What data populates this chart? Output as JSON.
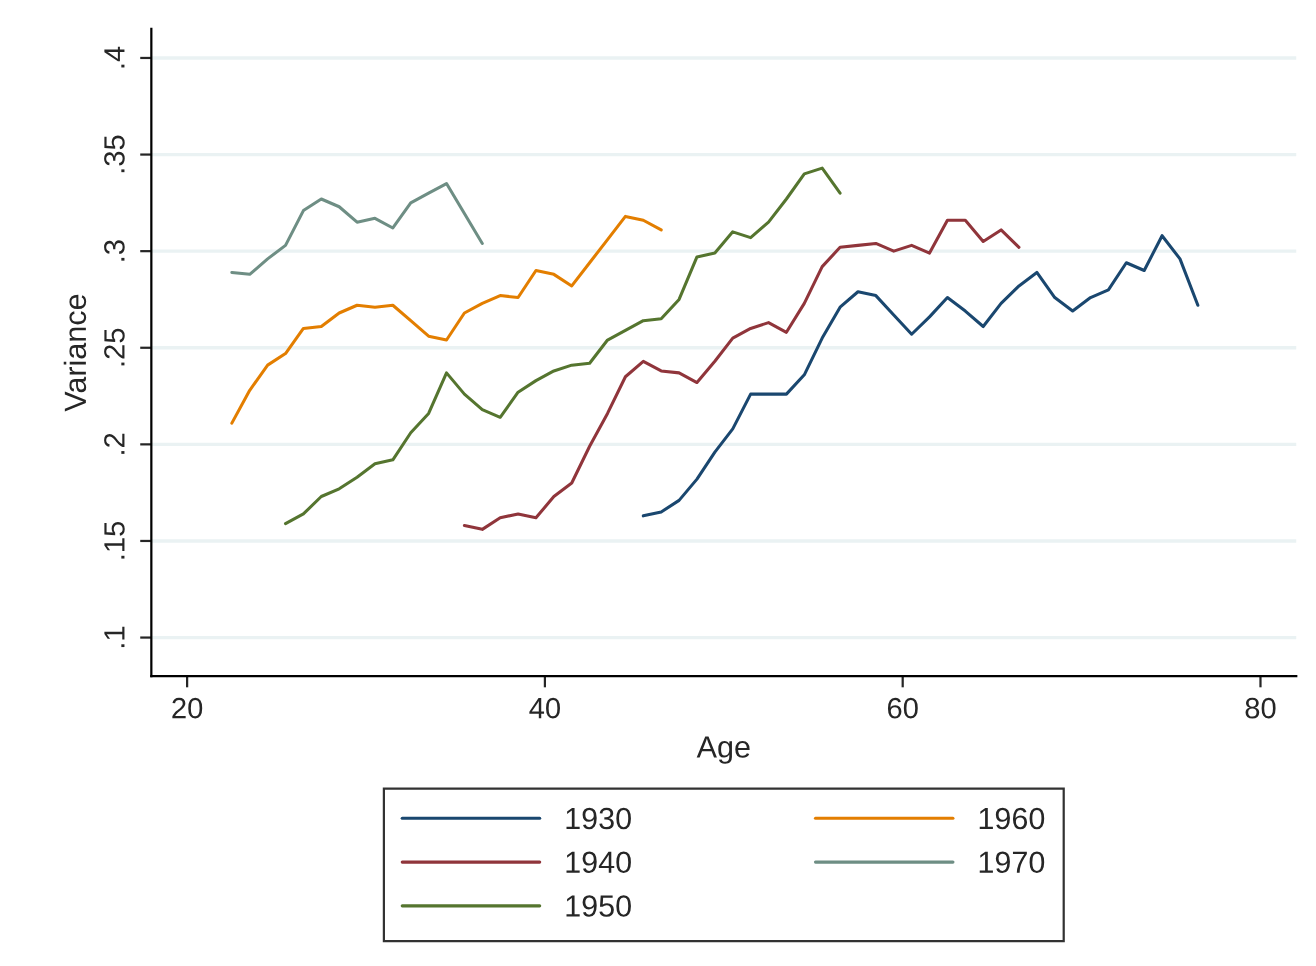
{
  "chart_data": {
    "type": "line",
    "xlabel": "Age",
    "ylabel": "Variance",
    "xlim": [
      18,
      82
    ],
    "xticks": [
      20,
      40,
      60,
      80
    ],
    "ylim": [
      0.08,
      0.415
    ],
    "yticks": [
      {
        "value": 0.1,
        "label": ".1"
      },
      {
        "value": 0.15,
        "label": ".15"
      },
      {
        "value": 0.2,
        "label": ".2"
      },
      {
        "value": 0.25,
        "label": ".25"
      },
      {
        "value": 0.3,
        "label": ".3"
      },
      {
        "value": 0.35,
        "label": ".35"
      },
      {
        "value": 0.4,
        "label": ".4"
      }
    ],
    "grid": "y",
    "legend": "bottom",
    "marker": "none",
    "line_style": "solid",
    "series": [
      {
        "name": "1930",
        "color": "#1a476f",
        "x": [
          45.5,
          46.5,
          47.5,
          48.5,
          49.5,
          50.5,
          51.5,
          52.5,
          53.5,
          54.5,
          55.5,
          56.5,
          57.5,
          58.5,
          59.5,
          60.5,
          61.5,
          62.5,
          63.5,
          64.5,
          65.5,
          66.5,
          67.5,
          68.5,
          69.5,
          70.5,
          71.5,
          72.5,
          73.5,
          74.5,
          75.5,
          76.5
        ],
        "values": [
          0.163,
          0.165,
          0.171,
          0.182,
          0.196,
          0.208,
          0.226,
          0.226,
          0.226,
          0.236,
          0.255,
          0.271,
          0.279,
          0.277,
          0.267,
          0.257,
          0.266,
          0.276,
          0.269,
          0.261,
          0.273,
          0.282,
          0.289,
          0.276,
          0.269,
          0.276,
          0.28,
          0.294,
          0.29,
          0.308,
          0.296,
          0.272
        ]
      },
      {
        "name": "1940",
        "color": "#90353b",
        "x": [
          35.5,
          36.5,
          37.5,
          38.5,
          39.5,
          40.5,
          41.5,
          42.5,
          43.5,
          44.5,
          45.5,
          46.5,
          47.5,
          48.5,
          49.5,
          50.5,
          51.5,
          52.5,
          53.5,
          54.5,
          55.5,
          56.5,
          57.5,
          58.5,
          59.5,
          60.5,
          61.5,
          62.5,
          63.5,
          64.5,
          65.5,
          66.5
        ],
        "values": [
          0.158,
          0.156,
          0.162,
          0.164,
          0.162,
          0.173,
          0.18,
          0.199,
          0.216,
          0.235,
          0.243,
          0.238,
          0.237,
          0.232,
          0.243,
          0.255,
          0.26,
          0.263,
          0.258,
          0.273,
          0.292,
          0.302,
          0.303,
          0.304,
          0.3,
          0.303,
          0.299,
          0.316,
          0.316,
          0.305,
          0.311,
          0.302
        ]
      },
      {
        "name": "1950",
        "color": "#55752f",
        "x": [
          25.5,
          26.5,
          27.5,
          28.5,
          29.5,
          30.5,
          31.5,
          32.5,
          33.5,
          34.5,
          35.5,
          36.5,
          37.5,
          38.5,
          39.5,
          40.5,
          41.5,
          42.5,
          43.5,
          44.5,
          45.5,
          46.5,
          47.5,
          48.5,
          49.5,
          50.5,
          51.5,
          52.5,
          53.5,
          54.5,
          55.5,
          56.5
        ],
        "values": [
          0.159,
          0.164,
          0.173,
          0.177,
          0.183,
          0.19,
          0.192,
          0.206,
          0.216,
          0.237,
          0.226,
          0.218,
          0.214,
          0.227,
          0.233,
          0.238,
          0.241,
          0.242,
          0.254,
          0.259,
          0.264,
          0.265,
          0.275,
          0.297,
          0.299,
          0.31,
          0.307,
          0.315,
          0.327,
          0.34,
          0.343,
          0.33
        ]
      },
      {
        "name": "1960",
        "color": "#e37e00",
        "x": [
          22.5,
          23.5,
          24.5,
          25.5,
          26.5,
          27.5,
          28.5,
          29.5,
          30.5,
          31.5,
          32.5,
          33.5,
          34.5,
          35.5,
          36.5,
          37.5,
          38.5,
          39.5,
          40.5,
          41.5,
          42.5,
          43.5,
          44.5,
          45.5,
          46.5
        ],
        "values": [
          0.211,
          0.228,
          0.241,
          0.247,
          0.26,
          0.261,
          0.268,
          0.272,
          0.271,
          0.272,
          0.264,
          0.256,
          0.254,
          0.268,
          0.273,
          0.277,
          0.276,
          0.29,
          0.288,
          0.282,
          0.294,
          0.306,
          0.318,
          0.316,
          0.311
        ]
      },
      {
        "name": "1970",
        "color": "#6e8e84",
        "x": [
          22.5,
          23.5,
          24.5,
          25.5,
          26.5,
          27.5,
          28.5,
          29.5,
          30.5,
          31.5,
          32.5,
          33.5,
          34.5,
          36.5
        ],
        "values": [
          0.289,
          0.288,
          0.296,
          0.303,
          0.321,
          0.327,
          0.323,
          0.315,
          0.317,
          0.312,
          0.325,
          0.33,
          0.335,
          0.304
        ]
      }
    ]
  }
}
